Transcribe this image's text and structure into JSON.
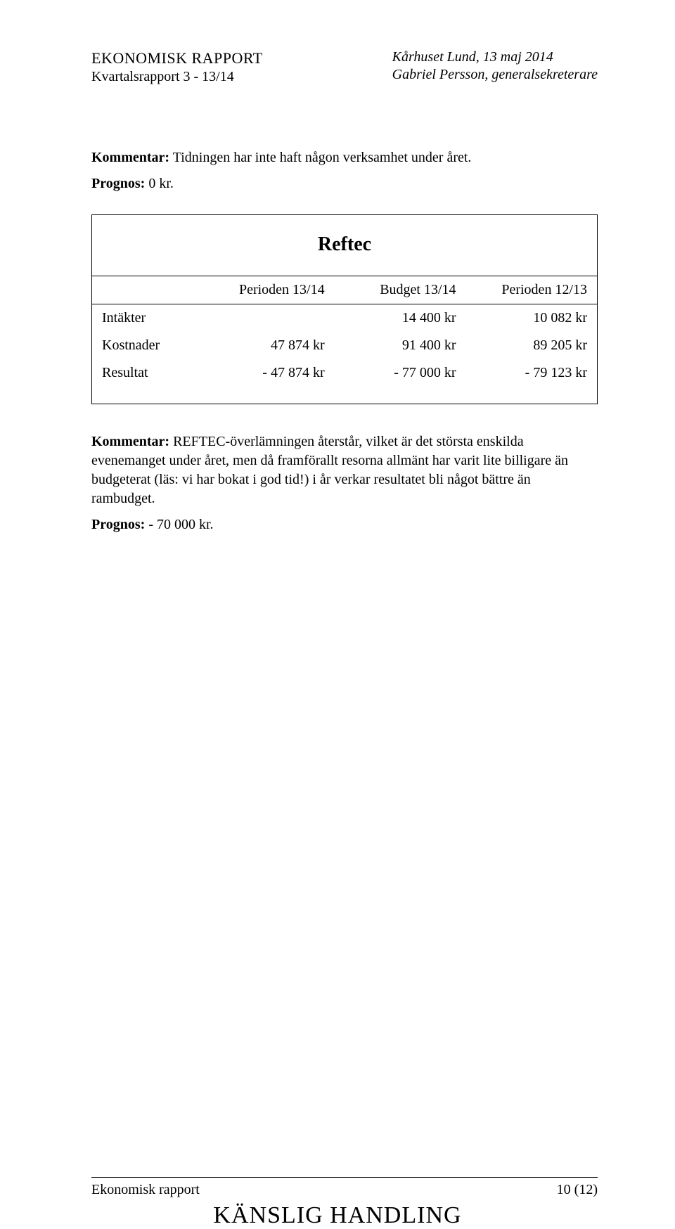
{
  "header": {
    "left_line1": "EKONOMISK RAPPORT",
    "left_line2": "Kvartalsrapport 3 - 13/14",
    "right_line1": "Kårhuset Lund, 13 maj 2014",
    "right_line2": "Gabriel Persson, generalsekreterare"
  },
  "comment1_label": "Kommentar:",
  "comment1_text": " Tidningen har inte haft någon verksamhet under året.",
  "prognos1_label": "Prognos:",
  "prognos1_text": " 0 kr.",
  "table": {
    "title": "Reftec",
    "col_headers": [
      "Perioden 13/14",
      "Budget 13/14",
      "Perioden 12/13"
    ],
    "rows": [
      {
        "label": "Intäkter",
        "c1": "",
        "c2": "14 400 kr",
        "c3": "10 082 kr"
      },
      {
        "label": "Kostnader",
        "c1": "47 874 kr",
        "c2": "91 400 kr",
        "c3": "89 205 kr"
      },
      {
        "label": "Resultat",
        "c1": "-   47 874 kr",
        "c2": "-   77 000 kr",
        "c3": "-   79 123 kr"
      }
    ]
  },
  "comment2_label": "Kommentar:",
  "comment2_text": " REFTEC-överlämningen återstår, vilket är det största enskilda evenemanget under året, men då framförallt resorna allmänt har varit lite billigare än budgeterat (läs: vi har bokat i god tid!) i år verkar resultatet bli något bättre än rambudget.",
  "prognos2_label": "Prognos:",
  "prognos2_text": " - 70 000 kr.",
  "footer": {
    "left": "Ekonomisk rapport",
    "right": "10 (12)"
  },
  "watermark": "KÄNSLIG HANDLING"
}
